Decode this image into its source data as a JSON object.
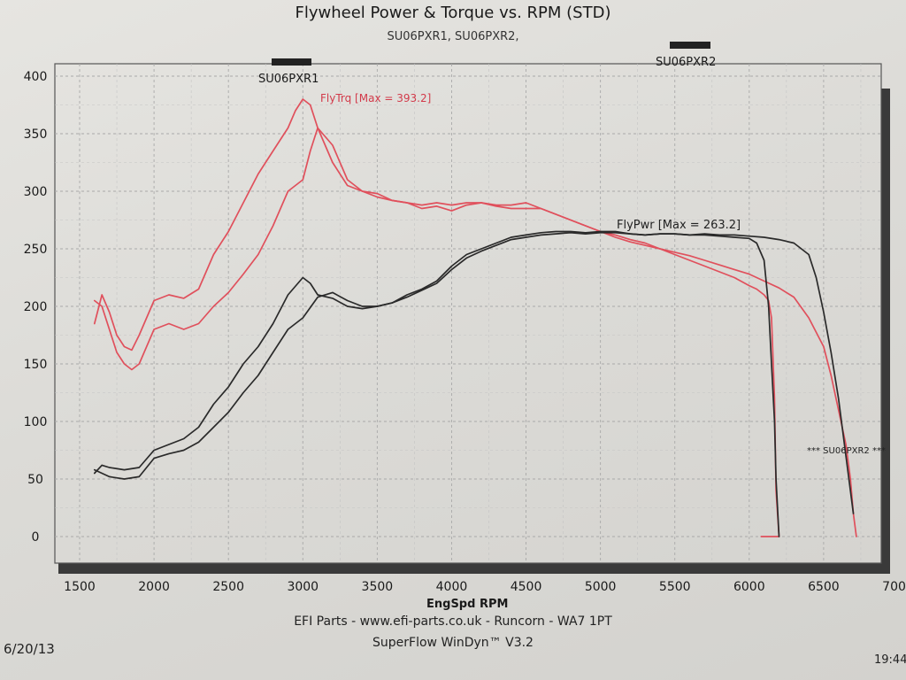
{
  "header": {
    "title": "Flywheel Power & Torque vs. RPM (STD)",
    "subtitle": "SU06PXR1, SU06PXR2,"
  },
  "footer": {
    "line1": "EFI Parts - www.efi-parts.co.uk - Runcorn - WA7 1PT",
    "line2": "SuperFlow WinDyn™ V3.2",
    "date": "6/20/13",
    "time": "19:44"
  },
  "chart_data": {
    "type": "line",
    "title": "Flywheel Power & Torque vs. RPM (STD)",
    "xlabel": "EngSpd RPM",
    "ylabel": "",
    "xlim": [
      1500,
      7000
    ],
    "ylim": [
      0,
      400
    ],
    "x_ticks": [
      "1500",
      "2000",
      "2500",
      "3000",
      "3500",
      "4000",
      "4500",
      "5000",
      "5500",
      "6000",
      "6500",
      "7000"
    ],
    "y_ticks": [
      "0",
      "50",
      "100",
      "150",
      "200",
      "250",
      "300",
      "350",
      "400"
    ],
    "grid": true,
    "legend": [
      {
        "name": "SU06PXR1",
        "position": "top",
        "color": "#222222"
      },
      {
        "name": "SU06PXR2",
        "position": "top",
        "color": "#222222"
      }
    ],
    "annotations": [
      {
        "text": "FlyTrq [Max = 393.2]",
        "color": "#d23a4a"
      },
      {
        "text": "FlyPwr [Max = 263.2]",
        "color": "#222222"
      },
      {
        "text": "*** SU06PXR2 ***",
        "color": "#222222"
      }
    ],
    "series": [
      {
        "name": "SU06PXR1",
        "color": "#e0505c",
        "x": [
          1600,
          1650,
          1700,
          1750,
          1800,
          1850,
          1900,
          2000,
          2100,
          2200,
          2300,
          2400,
          2500,
          2600,
          2700,
          2800,
          2900,
          2950,
          3000,
          3050,
          3100,
          3200,
          3300,
          3400,
          3500,
          3600,
          3700,
          3800,
          3900,
          4000,
          4100,
          4200,
          4300,
          4400,
          4500,
          4600,
          4700,
          4800,
          4900,
          5000,
          5100,
          5200,
          5300,
          5400,
          5500,
          5600,
          5700,
          5800,
          5900,
          6000,
          6050,
          6100,
          6130,
          6150,
          6170,
          6180,
          6200,
          6150,
          6080
        ],
        "values": [
          185,
          210,
          195,
          175,
          165,
          162,
          175,
          205,
          210,
          207,
          215,
          245,
          265,
          290,
          315,
          335,
          355,
          370,
          380,
          375,
          355,
          325,
          305,
          300,
          295,
          292,
          290,
          288,
          290,
          288,
          290,
          290,
          288,
          288,
          290,
          285,
          280,
          275,
          270,
          265,
          262,
          258,
          255,
          250,
          245,
          240,
          235,
          230,
          225,
          218,
          215,
          210,
          205,
          190,
          120,
          40,
          0,
          0,
          0
        ]
      },
      {
        "name": "SU06PXR2",
        "color": "#e0505c",
        "x": [
          1600,
          1650,
          1700,
          1750,
          1800,
          1850,
          1900,
          2000,
          2100,
          2200,
          2300,
          2400,
          2500,
          2600,
          2700,
          2800,
          2900,
          3000,
          3050,
          3100,
          3200,
          3300,
          3400,
          3500,
          3600,
          3700,
          3800,
          3900,
          4000,
          4100,
          4200,
          4300,
          4400,
          4500,
          4600,
          4700,
          4800,
          4900,
          5000,
          5100,
          5200,
          5300,
          5400,
          5500,
          5600,
          5700,
          5800,
          5900,
          6000,
          6100,
          6200,
          6300,
          6400,
          6500,
          6550,
          6600,
          6650,
          6680,
          6700,
          6720
        ],
        "values": [
          205,
          200,
          180,
          160,
          150,
          145,
          150,
          180,
          185,
          180,
          185,
          200,
          212,
          228,
          245,
          270,
          300,
          310,
          335,
          355,
          340,
          310,
          300,
          298,
          292,
          290,
          285,
          287,
          283,
          288,
          290,
          287,
          285,
          285,
          285,
          280,
          275,
          270,
          265,
          260,
          256,
          253,
          250,
          247,
          244,
          240,
          236,
          232,
          228,
          222,
          216,
          208,
          190,
          165,
          140,
          110,
          80,
          50,
          20,
          0
        ]
      },
      {
        "name": "SU06PXR1",
        "color": "#2a2a2a",
        "x": [
          1600,
          1650,
          1700,
          1800,
          1900,
          2000,
          2100,
          2200,
          2300,
          2400,
          2500,
          2600,
          2700,
          2800,
          2900,
          3000,
          3050,
          3100,
          3200,
          3300,
          3400,
          3500,
          3600,
          3700,
          3800,
          3900,
          4000,
          4100,
          4200,
          4300,
          4400,
          4500,
          4600,
          4700,
          4800,
          4900,
          5000,
          5100,
          5200,
          5300,
          5400,
          5500,
          5600,
          5700,
          5800,
          5900,
          6000,
          6050,
          6100,
          6130,
          6150,
          6170,
          6180,
          6200
        ],
        "values": [
          55,
          62,
          60,
          58,
          60,
          75,
          80,
          85,
          95,
          115,
          130,
          150,
          165,
          185,
          210,
          225,
          220,
          210,
          207,
          200,
          198,
          200,
          203,
          210,
          215,
          222,
          235,
          245,
          250,
          255,
          260,
          262,
          264,
          265,
          265,
          264,
          265,
          265,
          263,
          262,
          263,
          263,
          262,
          262,
          261,
          260,
          259,
          255,
          240,
          200,
          150,
          100,
          50,
          0
        ]
      },
      {
        "name": "SU06PXR2",
        "color": "#2a2a2a",
        "x": [
          1600,
          1650,
          1700,
          1800,
          1900,
          2000,
          2100,
          2200,
          2300,
          2400,
          2500,
          2600,
          2700,
          2800,
          2900,
          3000,
          3100,
          3200,
          3300,
          3400,
          3500,
          3600,
          3700,
          3800,
          3900,
          4000,
          4100,
          4200,
          4300,
          4400,
          4500,
          4600,
          4700,
          4800,
          4900,
          5000,
          5100,
          5200,
          5300,
          5400,
          5500,
          5600,
          5700,
          5800,
          5900,
          6000,
          6100,
          6200,
          6300,
          6400,
          6450,
          6500,
          6550,
          6600,
          6650,
          6700
        ],
        "values": [
          58,
          55,
          52,
          50,
          52,
          68,
          72,
          75,
          82,
          95,
          108,
          125,
          140,
          160,
          180,
          190,
          208,
          212,
          205,
          200,
          200,
          203,
          208,
          214,
          220,
          232,
          242,
          248,
          253,
          258,
          260,
          262,
          263,
          264,
          263,
          264,
          264,
          263,
          262,
          263,
          263,
          262,
          263,
          262,
          262,
          261,
          260,
          258,
          255,
          245,
          225,
          195,
          160,
          120,
          70,
          20
        ]
      }
    ]
  }
}
